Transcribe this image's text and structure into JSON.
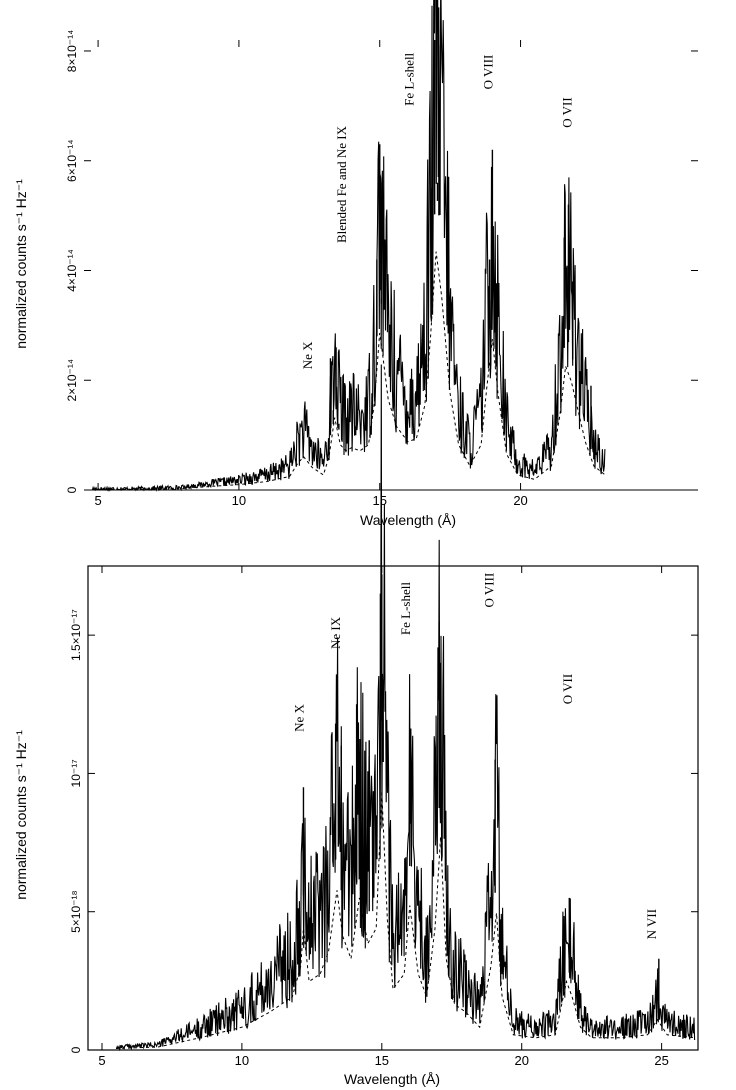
{
  "chart_data": [
    {
      "type": "line",
      "xlabel": "Wavelength (Å)",
      "ylabel": "normalized counts s⁻¹ Hz⁻¹",
      "xlim": [
        4.5,
        26.3
      ],
      "ylim": [
        0,
        8.2e-14
      ],
      "x_ticks": [
        {
          "value": 5,
          "label": "5"
        },
        {
          "value": 10,
          "label": "10"
        },
        {
          "value": 15,
          "label": "15"
        },
        {
          "value": 20,
          "label": "20"
        }
      ],
      "y_ticks": [
        {
          "value": 0,
          "label": "0"
        },
        {
          "value": 2e-14,
          "label": "2×10⁻¹⁴"
        },
        {
          "value": 4e-14,
          "label": "4×10⁻¹⁴"
        },
        {
          "value": 6e-14,
          "label": "6×10⁻¹⁴"
        },
        {
          "value": 8e-14,
          "label": "8×10⁻¹⁴"
        }
      ],
      "annotations": [
        {
          "text": "Ne X",
          "x": 12.6,
          "y": 2.2e-14
        },
        {
          "text": "Blended Fe and Ne IX",
          "x": 13.8,
          "y": 4.5e-14
        },
        {
          "text": "Fe L-shell",
          "x": 16.2,
          "y": 7e-14
        },
        {
          "text": "O VIII",
          "x": 19.0,
          "y": 7.3e-14
        },
        {
          "text": "O VII",
          "x": 21.8,
          "y": 6.6e-14
        }
      ],
      "data_series": {
        "baseline": [
          [
            4.8,
            2e-16
          ],
          [
            6.5,
            2e-16
          ],
          [
            8,
            5e-16
          ],
          [
            9,
            1.2e-15
          ],
          [
            10,
            1.8e-15
          ],
          [
            11,
            2.8e-15
          ],
          [
            11.8,
            4.5e-15
          ],
          [
            12.1,
            9e-15
          ],
          [
            12.3,
            1.1e-14
          ],
          [
            12.6,
            7.5e-15
          ],
          [
            13,
            5e-15
          ],
          [
            13.2,
            1.1e-14
          ],
          [
            13.4,
            2.4e-14
          ],
          [
            13.6,
            1.5e-14
          ],
          [
            13.8,
            1.3e-14
          ],
          [
            14,
            1.4e-14
          ],
          [
            14.3,
            1.3e-14
          ],
          [
            14.6,
            1.5e-14
          ],
          [
            14.8,
            2.8e-14
          ],
          [
            15.0,
            5.2e-14
          ],
          [
            15.1,
            4.5e-14
          ],
          [
            15.3,
            3e-14
          ],
          [
            15.6,
            2.1e-14
          ],
          [
            16.0,
            1.6e-14
          ],
          [
            16.3,
            1.7e-14
          ],
          [
            16.6,
            2.8e-14
          ],
          [
            16.8,
            5e-14
          ],
          [
            17.0,
            7.9e-14
          ],
          [
            17.2,
            6.4e-14
          ],
          [
            17.5,
            3.2e-14
          ],
          [
            17.8,
            1.5e-14
          ],
          [
            18.2,
            8e-15
          ],
          [
            18.6,
            1.5e-14
          ],
          [
            18.8,
            3.4e-14
          ],
          [
            19.0,
            5e-14
          ],
          [
            19.2,
            3.2e-14
          ],
          [
            19.5,
            1.2e-14
          ],
          [
            19.9,
            5e-15
          ],
          [
            20.5,
            3.5e-15
          ],
          [
            21.1,
            8e-15
          ],
          [
            21.4,
            2.5e-14
          ],
          [
            21.6,
            4.1e-14
          ],
          [
            21.8,
            3.6e-14
          ],
          [
            22.0,
            2.8e-14
          ],
          [
            22.3,
            1.6e-14
          ],
          [
            22.6,
            8e-15
          ],
          [
            23.0,
            5e-15
          ]
        ],
        "noisy_points": [
          [
            13.25,
            2.4e-14
          ],
          [
            13.35,
            1.2e-14
          ],
          [
            13.45,
            2.6e-14
          ],
          [
            13.55,
            1.1e-14
          ],
          [
            14.9,
            4.2e-14
          ],
          [
            15.0,
            6.3e-14
          ],
          [
            15.05,
            3.5e-14
          ],
          [
            16.85,
            5.5e-14
          ],
          [
            16.95,
            8.2e-14
          ],
          [
            17.05,
            5.6e-14
          ],
          [
            17.1,
            8.1e-14
          ],
          [
            18.9,
            4.2e-14
          ],
          [
            19.0,
            6.2e-14
          ],
          [
            19.1,
            3.8e-14
          ],
          [
            21.55,
            4.6e-14
          ],
          [
            21.7,
            5.2e-14
          ],
          [
            21.85,
            3.8e-14
          ],
          [
            22.5,
            1.9e-14
          ],
          [
            22.6,
            9e-15
          ]
        ]
      }
    },
    {
      "type": "line",
      "xlabel": "Wavelength (Å)",
      "ylabel": "normalized counts s⁻¹ Hz⁻¹",
      "xlim": [
        4.5,
        26.3
      ],
      "ylim": [
        0,
        1.75e-17
      ],
      "x_ticks": [
        {
          "value": 5,
          "label": "5"
        },
        {
          "value": 10,
          "label": "10"
        },
        {
          "value": 15,
          "label": "15"
        },
        {
          "value": 20,
          "label": "20"
        },
        {
          "value": 25,
          "label": "25"
        }
      ],
      "y_ticks": [
        {
          "value": 0,
          "label": "0"
        },
        {
          "value": 5e-18,
          "label": "5×10⁻¹⁸"
        },
        {
          "value": 1e-17,
          "label": "10⁻¹⁷"
        },
        {
          "value": 1.5e-17,
          "label": "1.5×10⁻¹⁷"
        }
      ],
      "annotations": [
        {
          "text": "Ne X",
          "x": 12.2,
          "y": 1.15e-17
        },
        {
          "text": "Ne IX",
          "x": 13.5,
          "y": 1.45e-17
        },
        {
          "text": "Fe L-shell",
          "x": 16.0,
          "y": 1.5e-17
        },
        {
          "text": "O VIII",
          "x": 19.0,
          "y": 1.6e-17
        },
        {
          "text": "O VII",
          "x": 21.8,
          "y": 1.25e-17
        },
        {
          "text": "N VII",
          "x": 24.8,
          "y": 4e-18
        }
      ],
      "data_series": {
        "baseline": [
          [
            5.5,
            1e-19
          ],
          [
            7,
            2e-19
          ],
          [
            8.5,
            8e-19
          ],
          [
            10,
            1.5e-18
          ],
          [
            11,
            2.5e-18
          ],
          [
            11.8,
            3.5e-18
          ],
          [
            12.1,
            5.5e-18
          ],
          [
            12.2,
            8e-18
          ],
          [
            12.4,
            4.5e-18
          ],
          [
            12.8,
            5e-18
          ],
          [
            13.1,
            6.5e-18
          ],
          [
            13.4,
            1.05e-17
          ],
          [
            13.6,
            7.5e-18
          ],
          [
            13.9,
            6e-18
          ],
          [
            14.2,
            1e-17
          ],
          [
            14.5,
            7e-18
          ],
          [
            14.8,
            8e-18
          ],
          [
            15.0,
            1.7e-17
          ],
          [
            15.2,
            8.5e-18
          ],
          [
            15.4,
            4e-18
          ],
          [
            15.8,
            5e-18
          ],
          [
            16.0,
            9.5e-18
          ],
          [
            16.3,
            5e-18
          ],
          [
            16.6,
            3.5e-18
          ],
          [
            16.9,
            8e-18
          ],
          [
            17.1,
            1.4e-17
          ],
          [
            17.3,
            6e-18
          ],
          [
            17.6,
            3e-18
          ],
          [
            18.0,
            2.5e-18
          ],
          [
            18.5,
            1.5e-18
          ],
          [
            18.9,
            5.5e-18
          ],
          [
            19.1,
            9e-18
          ],
          [
            19.3,
            3.5e-18
          ],
          [
            19.7,
            1e-18
          ],
          [
            20.5,
            8e-19
          ],
          [
            21.2,
            1e-18
          ],
          [
            21.6,
            4.5e-18
          ],
          [
            21.8,
            3.5e-18
          ],
          [
            22.1,
            1.5e-18
          ],
          [
            22.5,
            8e-19
          ],
          [
            23.5,
            8e-19
          ],
          [
            24.5,
            1e-18
          ],
          [
            24.85,
            2e-18
          ],
          [
            25.2,
            1e-18
          ],
          [
            26.2,
            8e-19
          ]
        ],
        "noisy_points": [
          [
            12.2,
            9.5e-18
          ],
          [
            13.35,
            1.18e-17
          ],
          [
            13.55,
            1.1e-17
          ],
          [
            14.1,
            1.25e-17
          ],
          [
            14.55,
            1.12e-17
          ],
          [
            14.95,
            1.65e-17
          ],
          [
            15.0,
            1.72e-17
          ],
          [
            15.05,
            1.3e-17
          ],
          [
            16.0,
            1e-17
          ],
          [
            17.05,
            1.55e-17
          ],
          [
            17.1,
            1.4e-17
          ],
          [
            19.05,
            1.05e-17
          ],
          [
            21.7,
            5.5e-18
          ],
          [
            24.9,
            3.3e-18
          ]
        ]
      }
    }
  ]
}
